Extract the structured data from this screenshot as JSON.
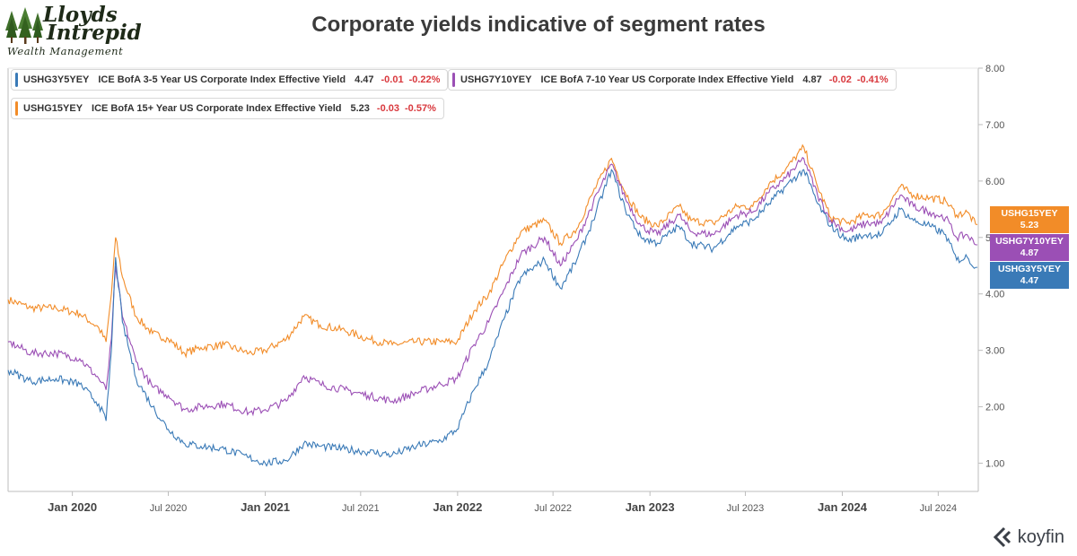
{
  "logo": {
    "line1": "Lloyds",
    "line2": "Intrepid",
    "subtitle": "Wealth Management"
  },
  "header": {
    "title": "Corporate yields indicative of segment rates"
  },
  "legend": [
    {
      "symbol": "USHG3Y5YEY",
      "name": "ICE BofA 3-5 Year US Corporate Index Effective Yield",
      "value": "4.47",
      "change": "-0.01",
      "pct": "-0.22%",
      "color": "#3a7ab7"
    },
    {
      "symbol": "USHG7Y10YEY",
      "name": "ICE BofA 7-10 Year US Corporate Index Effective Yield",
      "value": "4.87",
      "change": "-0.02",
      "pct": "-0.41%",
      "color": "#9b4fb5"
    },
    {
      "symbol": "USHG15YEY",
      "name": "ICE BofA 15+ Year US Corporate Index Effective Yield",
      "value": "5.23",
      "change": "-0.03",
      "pct": "-0.57%",
      "color": "#f28c28"
    }
  ],
  "badges": [
    {
      "symbol": "USHG15YEY",
      "value": "5.23",
      "color": "#f28c28"
    },
    {
      "symbol": "USHG7Y10YEY",
      "value": "4.87",
      "color": "#9b4fb5"
    },
    {
      "symbol": "USHG3Y5YEY",
      "value": "4.47",
      "color": "#3a7ab7"
    }
  ],
  "brand": {
    "name": "koyfin"
  },
  "chart_data": {
    "type": "line",
    "title": "Corporate yields indicative of segment rates",
    "xlabel": "",
    "ylabel": "",
    "x_range": [
      "2019-09-01",
      "2024-09-15"
    ],
    "ylim": [
      0.5,
      8.0
    ],
    "y_ticks": [
      "1.00",
      "2.00",
      "3.00",
      "4.00",
      "5.00",
      "6.00",
      "7.00",
      "8.00"
    ],
    "x_ticks": [
      {
        "label": "Jan 2020",
        "date": "2020-01-01",
        "bold": true
      },
      {
        "label": "Jul 2020",
        "date": "2020-07-01",
        "bold": false
      },
      {
        "label": "Jan 2021",
        "date": "2021-01-01",
        "bold": true
      },
      {
        "label": "Jul 2021",
        "date": "2021-07-01",
        "bold": false
      },
      {
        "label": "Jan 2022",
        "date": "2022-01-01",
        "bold": true
      },
      {
        "label": "Jul 2022",
        "date": "2022-07-01",
        "bold": false
      },
      {
        "label": "Jan 2023",
        "date": "2023-01-01",
        "bold": true
      },
      {
        "label": "Jul 2023",
        "date": "2023-07-01",
        "bold": false
      },
      {
        "label": "Jan 2024",
        "date": "2024-01-01",
        "bold": true
      },
      {
        "label": "Jul 2024",
        "date": "2024-07-01",
        "bold": false
      }
    ],
    "grid": false,
    "legend_position": "top-left",
    "series": [
      {
        "name": "USHG3Y5YEY",
        "color": "#3a7ab7",
        "points": [
          [
            "2019-09-01",
            2.65
          ],
          [
            "2019-10-15",
            2.45
          ],
          [
            "2019-12-01",
            2.5
          ],
          [
            "2020-01-15",
            2.4
          ],
          [
            "2020-02-20",
            2.05
          ],
          [
            "2020-03-05",
            1.75
          ],
          [
            "2020-03-15",
            3.0
          ],
          [
            "2020-03-23",
            4.65
          ],
          [
            "2020-04-05",
            3.5
          ],
          [
            "2020-05-01",
            2.5
          ],
          [
            "2020-06-01",
            2.0
          ],
          [
            "2020-07-01",
            1.6
          ],
          [
            "2020-08-01",
            1.35
          ],
          [
            "2020-09-01",
            1.3
          ],
          [
            "2020-10-15",
            1.25
          ],
          [
            "2020-12-01",
            1.1
          ],
          [
            "2021-01-01",
            1.0
          ],
          [
            "2021-02-10",
            1.05
          ],
          [
            "2021-03-15",
            1.35
          ],
          [
            "2021-04-15",
            1.3
          ],
          [
            "2021-06-01",
            1.25
          ],
          [
            "2021-07-15",
            1.2
          ],
          [
            "2021-08-30",
            1.15
          ],
          [
            "2021-10-15",
            1.3
          ],
          [
            "2021-11-30",
            1.4
          ],
          [
            "2021-12-31",
            1.6
          ],
          [
            "2022-02-01",
            2.3
          ],
          [
            "2022-03-01",
            2.8
          ],
          [
            "2022-04-01",
            3.6
          ],
          [
            "2022-05-01",
            4.3
          ],
          [
            "2022-06-15",
            4.6
          ],
          [
            "2022-07-15",
            4.1
          ],
          [
            "2022-08-15",
            4.6
          ],
          [
            "2022-09-15",
            5.3
          ],
          [
            "2022-10-20",
            6.2
          ],
          [
            "2022-11-15",
            5.5
          ],
          [
            "2022-12-15",
            5.0
          ],
          [
            "2023-01-15",
            4.9
          ],
          [
            "2023-02-25",
            5.2
          ],
          [
            "2023-03-20",
            4.9
          ],
          [
            "2023-05-01",
            4.8
          ],
          [
            "2023-06-15",
            5.2
          ],
          [
            "2023-07-15",
            5.3
          ],
          [
            "2023-08-15",
            5.6
          ],
          [
            "2023-09-15",
            5.9
          ],
          [
            "2023-10-20",
            6.2
          ],
          [
            "2023-11-15",
            5.6
          ],
          [
            "2023-12-10",
            5.2
          ],
          [
            "2024-01-10",
            4.95
          ],
          [
            "2024-02-15",
            5.05
          ],
          [
            "2024-03-15",
            5.05
          ],
          [
            "2024-04-20",
            5.5
          ],
          [
            "2024-05-15",
            5.3
          ],
          [
            "2024-06-15",
            5.2
          ],
          [
            "2024-07-15",
            5.05
          ],
          [
            "2024-08-05",
            4.6
          ],
          [
            "2024-08-25",
            4.65
          ],
          [
            "2024-09-10",
            4.47
          ]
        ]
      },
      {
        "name": "USHG7Y10YEY",
        "color": "#9b4fb5",
        "points": [
          [
            "2019-09-01",
            3.15
          ],
          [
            "2019-10-15",
            2.95
          ],
          [
            "2019-12-01",
            2.95
          ],
          [
            "2020-01-15",
            2.85
          ],
          [
            "2020-02-20",
            2.5
          ],
          [
            "2020-03-05",
            2.3
          ],
          [
            "2020-03-15",
            3.2
          ],
          [
            "2020-03-23",
            4.5
          ],
          [
            "2020-04-05",
            3.6
          ],
          [
            "2020-05-01",
            2.8
          ],
          [
            "2020-06-01",
            2.35
          ],
          [
            "2020-07-01",
            2.2
          ],
          [
            "2020-08-01",
            1.95
          ],
          [
            "2020-09-01",
            2.0
          ],
          [
            "2020-10-15",
            2.05
          ],
          [
            "2020-12-01",
            1.9
          ],
          [
            "2021-01-01",
            1.95
          ],
          [
            "2021-02-10",
            2.1
          ],
          [
            "2021-03-15",
            2.55
          ],
          [
            "2021-04-15",
            2.4
          ],
          [
            "2021-06-01",
            2.3
          ],
          [
            "2021-07-15",
            2.2
          ],
          [
            "2021-08-30",
            2.1
          ],
          [
            "2021-10-15",
            2.25
          ],
          [
            "2021-11-30",
            2.4
          ],
          [
            "2021-12-31",
            2.5
          ],
          [
            "2022-02-01",
            3.1
          ],
          [
            "2022-03-01",
            3.5
          ],
          [
            "2022-04-01",
            4.1
          ],
          [
            "2022-05-01",
            4.7
          ],
          [
            "2022-06-15",
            5.0
          ],
          [
            "2022-07-15",
            4.5
          ],
          [
            "2022-08-15",
            4.95
          ],
          [
            "2022-09-15",
            5.6
          ],
          [
            "2022-10-20",
            6.3
          ],
          [
            "2022-11-15",
            5.7
          ],
          [
            "2022-12-15",
            5.2
          ],
          [
            "2023-01-15",
            5.05
          ],
          [
            "2023-02-25",
            5.4
          ],
          [
            "2023-03-20",
            5.1
          ],
          [
            "2023-05-01",
            5.05
          ],
          [
            "2023-06-15",
            5.4
          ],
          [
            "2023-07-15",
            5.45
          ],
          [
            "2023-08-15",
            5.8
          ],
          [
            "2023-09-15",
            6.05
          ],
          [
            "2023-10-20",
            6.4
          ],
          [
            "2023-11-15",
            5.75
          ],
          [
            "2023-12-10",
            5.3
          ],
          [
            "2024-01-10",
            5.1
          ],
          [
            "2024-02-15",
            5.25
          ],
          [
            "2024-03-15",
            5.25
          ],
          [
            "2024-04-20",
            5.75
          ],
          [
            "2024-05-15",
            5.55
          ],
          [
            "2024-06-15",
            5.45
          ],
          [
            "2024-07-15",
            5.35
          ],
          [
            "2024-08-05",
            5.0
          ],
          [
            "2024-08-25",
            5.05
          ],
          [
            "2024-09-10",
            4.87
          ]
        ]
      },
      {
        "name": "USHG15YEY",
        "color": "#f28c28",
        "points": [
          [
            "2019-09-01",
            3.9
          ],
          [
            "2019-10-15",
            3.75
          ],
          [
            "2019-12-01",
            3.75
          ],
          [
            "2020-01-15",
            3.65
          ],
          [
            "2020-02-20",
            3.4
          ],
          [
            "2020-03-05",
            3.15
          ],
          [
            "2020-03-15",
            4.0
          ],
          [
            "2020-03-23",
            5.0
          ],
          [
            "2020-04-05",
            4.3
          ],
          [
            "2020-05-01",
            3.6
          ],
          [
            "2020-06-01",
            3.3
          ],
          [
            "2020-07-01",
            3.2
          ],
          [
            "2020-08-01",
            2.95
          ],
          [
            "2020-09-01",
            3.05
          ],
          [
            "2020-10-15",
            3.1
          ],
          [
            "2020-12-01",
            2.95
          ],
          [
            "2021-01-01",
            3.0
          ],
          [
            "2021-02-10",
            3.2
          ],
          [
            "2021-03-15",
            3.6
          ],
          [
            "2021-04-15",
            3.45
          ],
          [
            "2021-06-01",
            3.35
          ],
          [
            "2021-07-15",
            3.2
          ],
          [
            "2021-08-30",
            3.1
          ],
          [
            "2021-10-15",
            3.15
          ],
          [
            "2021-11-30",
            3.15
          ],
          [
            "2021-12-31",
            3.15
          ],
          [
            "2022-02-01",
            3.7
          ],
          [
            "2022-03-01",
            4.0
          ],
          [
            "2022-04-01",
            4.6
          ],
          [
            "2022-05-01",
            5.1
          ],
          [
            "2022-06-15",
            5.3
          ],
          [
            "2022-07-15",
            4.9
          ],
          [
            "2022-08-15",
            5.15
          ],
          [
            "2022-09-15",
            5.8
          ],
          [
            "2022-10-20",
            6.4
          ],
          [
            "2022-11-15",
            5.8
          ],
          [
            "2022-12-15",
            5.35
          ],
          [
            "2023-01-15",
            5.2
          ],
          [
            "2023-02-25",
            5.55
          ],
          [
            "2023-03-20",
            5.3
          ],
          [
            "2023-05-01",
            5.25
          ],
          [
            "2023-06-15",
            5.55
          ],
          [
            "2023-07-15",
            5.55
          ],
          [
            "2023-08-15",
            5.95
          ],
          [
            "2023-09-15",
            6.2
          ],
          [
            "2023-10-20",
            6.6
          ],
          [
            "2023-11-15",
            5.9
          ],
          [
            "2023-12-10",
            5.35
          ],
          [
            "2024-01-10",
            5.25
          ],
          [
            "2024-02-15",
            5.4
          ],
          [
            "2024-03-15",
            5.4
          ],
          [
            "2024-04-20",
            5.9
          ],
          [
            "2024-05-15",
            5.75
          ],
          [
            "2024-06-15",
            5.7
          ],
          [
            "2024-07-15",
            5.65
          ],
          [
            "2024-08-05",
            5.4
          ],
          [
            "2024-08-25",
            5.45
          ],
          [
            "2024-09-10",
            5.23
          ]
        ]
      }
    ]
  }
}
